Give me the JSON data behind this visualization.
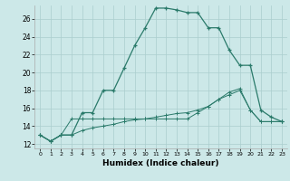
{
  "xlabel": "Humidex (Indice chaleur)",
  "bg_color": "#cce8e8",
  "line_color": "#2a7a6a",
  "grid_color": "#aacece",
  "xlim": [
    -0.5,
    23.5
  ],
  "ylim": [
    11.5,
    27.5
  ],
  "yticks": [
    12,
    14,
    16,
    18,
    20,
    22,
    24,
    26
  ],
  "xticks": [
    0,
    1,
    2,
    3,
    4,
    5,
    6,
    7,
    8,
    9,
    10,
    11,
    12,
    13,
    14,
    15,
    16,
    17,
    18,
    19,
    20,
    21,
    22,
    23
  ],
  "xtick_labels": [
    "0",
    "1",
    "2",
    "3",
    "4",
    "5",
    "6",
    "7",
    "8",
    "9",
    "10",
    "11",
    "12",
    "13",
    "14",
    "15",
    "16",
    "17",
    "18",
    "19",
    "20",
    "21",
    "22",
    "23"
  ],
  "series1_x": [
    0,
    1,
    2,
    3,
    4,
    5,
    6,
    7,
    8,
    9,
    10,
    11,
    12,
    13,
    14,
    15,
    16,
    17,
    18,
    19,
    20,
    21,
    22,
    23
  ],
  "series1_y": [
    13.0,
    12.3,
    13.0,
    13.0,
    15.5,
    15.5,
    18.0,
    18.0,
    20.5,
    23.0,
    25.0,
    27.2,
    27.2,
    27.0,
    26.7,
    26.7,
    25.0,
    25.0,
    22.5,
    20.8,
    20.8,
    15.8,
    15.0,
    14.5
  ],
  "series2_x": [
    0,
    1,
    2,
    3,
    4,
    5,
    6,
    7,
    8,
    9,
    10,
    11,
    12,
    13,
    14,
    15,
    16,
    17,
    18,
    19,
    20,
    21,
    22,
    23
  ],
  "series2_y": [
    13.0,
    12.3,
    13.0,
    14.8,
    14.8,
    14.8,
    14.8,
    14.8,
    14.8,
    14.8,
    14.8,
    14.8,
    14.8,
    14.8,
    14.8,
    15.5,
    16.2,
    17.0,
    17.8,
    18.2,
    15.8,
    14.5,
    14.5,
    14.5
  ],
  "series3_x": [
    0,
    1,
    2,
    3,
    4,
    5,
    6,
    7,
    8,
    9,
    10,
    11,
    12,
    13,
    14,
    15,
    16,
    17,
    18,
    19,
    20,
    21,
    22,
    23
  ],
  "series3_y": [
    13.0,
    12.3,
    13.0,
    13.0,
    13.5,
    13.8,
    14.0,
    14.2,
    14.5,
    14.7,
    14.8,
    15.0,
    15.2,
    15.4,
    15.5,
    15.8,
    16.2,
    17.0,
    17.5,
    18.0,
    15.8,
    14.5,
    14.5,
    14.5
  ]
}
